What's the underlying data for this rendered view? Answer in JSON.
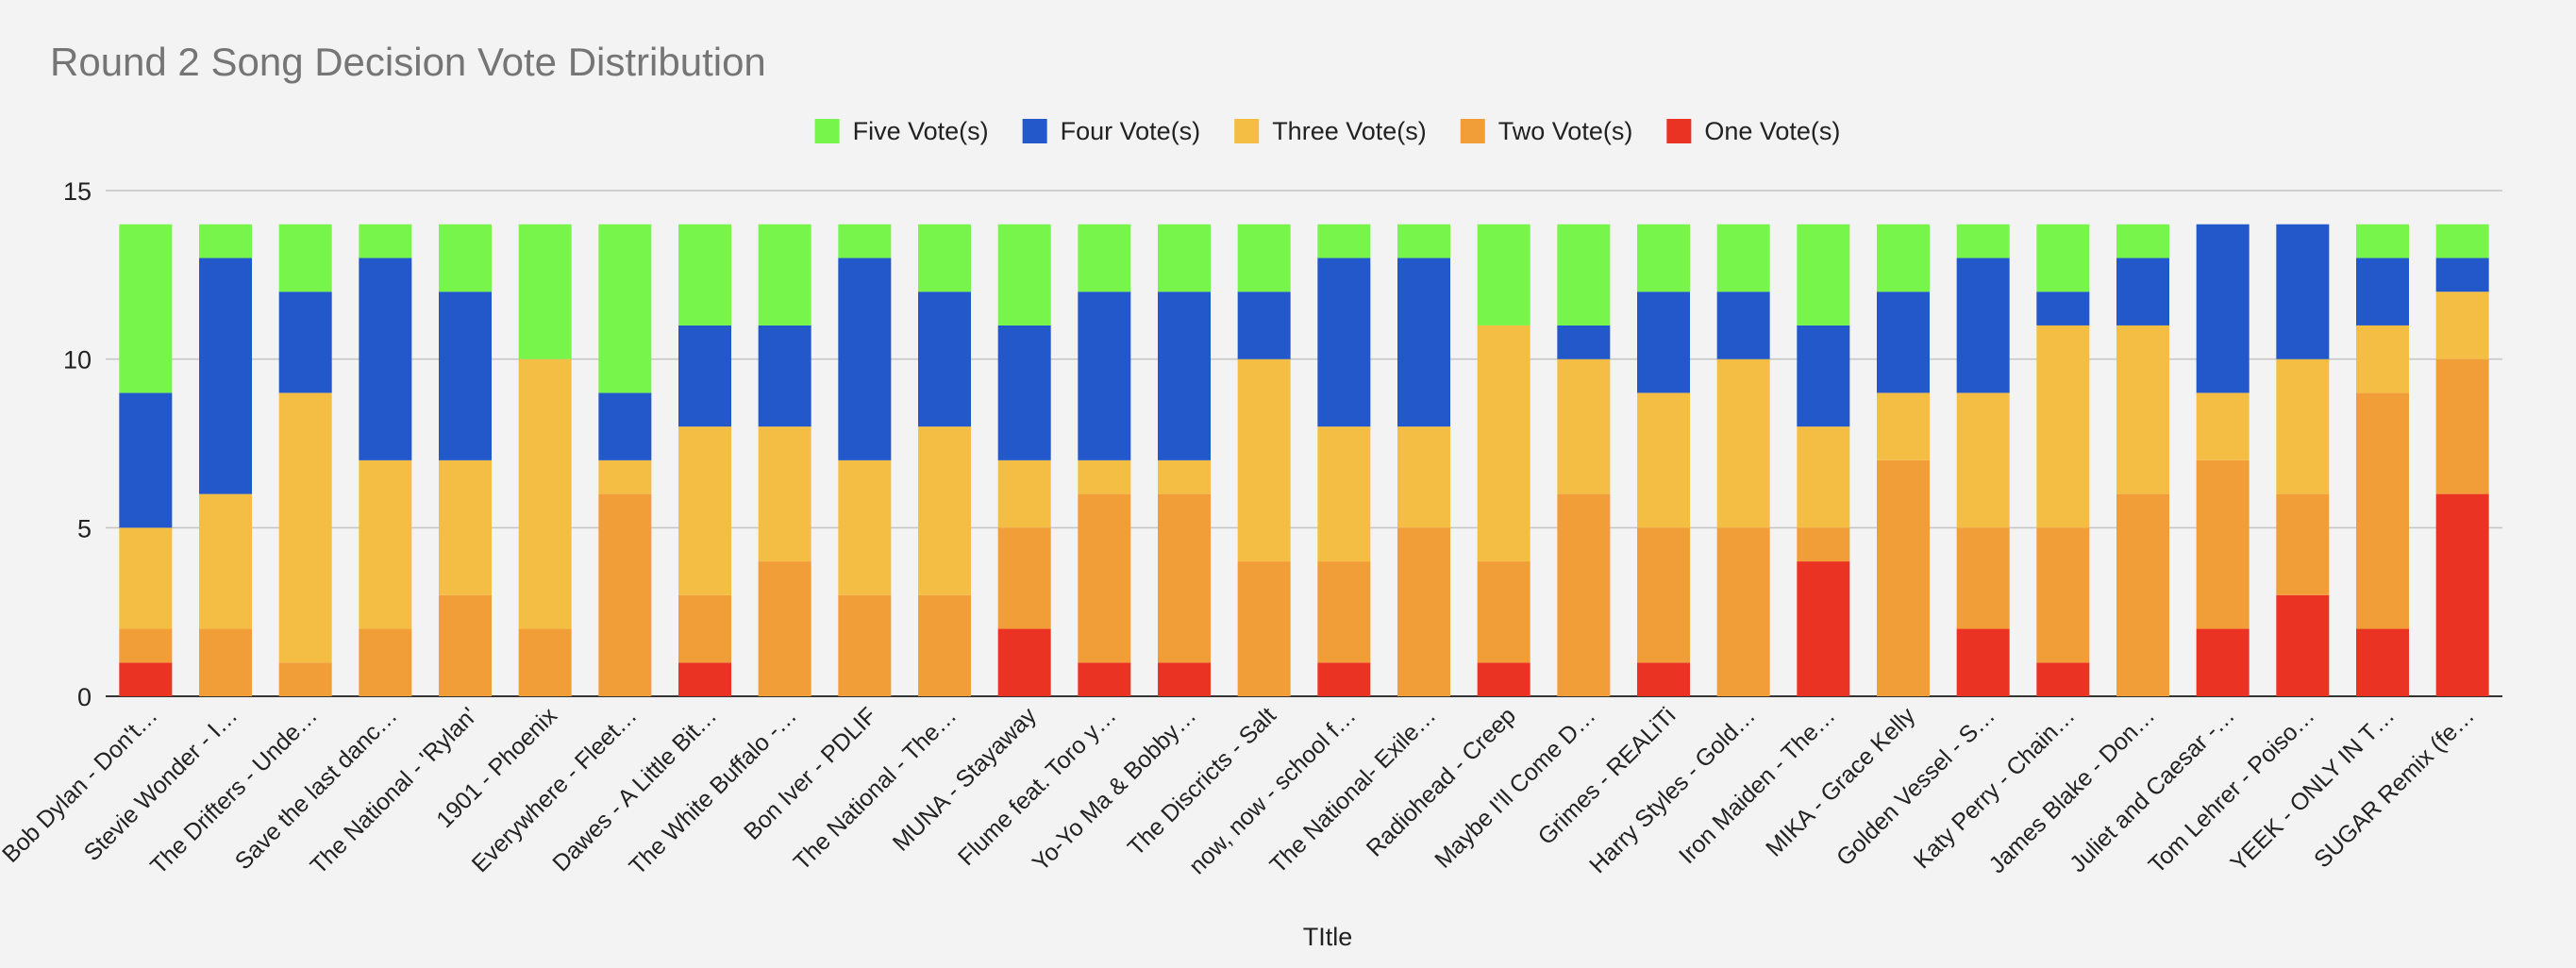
{
  "chart_data": {
    "type": "bar",
    "stacked": true,
    "title": "Round 2 Song Decision Vote Distribution",
    "xlabel": "TItle",
    "ylabel": "",
    "ylim": [
      0,
      15
    ],
    "yticks": [
      0,
      5,
      10,
      15
    ],
    "grid": true,
    "legend_position": "top",
    "categories": [
      "Bob Dylan - Don't…",
      "Stevie Wonder - I…",
      "The Drifters - Unde…",
      "Save the last danc…",
      "The National - 'Rylan'",
      "1901 - Phoenix",
      "Everywhere - Fleet…",
      "Dawes - A Little Bit…",
      "The White Buffalo -…",
      "Bon Iver - PDLIF",
      "The National - The…",
      "MUNA - Stayaway",
      "Flume feat. Toro y…",
      "Yo-Yo Ma & Bobby…",
      "The Discricts - Salt",
      "now, now - school f…",
      "The National- Exile…",
      "Radiohead - Creep",
      "Maybe I'll Come D…",
      "Grimes - REALiTi",
      "Harry Styles - Gold…",
      "Iron Maiden - The…",
      "MIKA - Grace Kelly",
      "Golden Vessel - S…",
      "Katy Perry - Chain…",
      "James Blake - Don…",
      "Juliet and Caesar -…",
      "Tom Lehrer - Poiso…",
      "YEEK - ONLY IN T…",
      "SUGAR Remix (fe…"
    ],
    "series": [
      {
        "name": "One Vote(s)",
        "color": "#ea3323",
        "values": [
          1,
          0,
          0,
          0,
          0,
          0,
          0,
          1,
          0,
          0,
          0,
          2,
          1,
          1,
          0,
          1,
          0,
          1,
          0,
          1,
          0,
          4,
          0,
          2,
          1,
          0,
          2,
          3,
          2,
          6
        ]
      },
      {
        "name": "Two Vote(s)",
        "color": "#f29e38",
        "values": [
          1,
          2,
          1,
          2,
          3,
          2,
          6,
          2,
          4,
          3,
          3,
          3,
          5,
          5,
          4,
          3,
          5,
          3,
          6,
          4,
          5,
          1,
          7,
          3,
          4,
          6,
          5,
          3,
          7,
          4
        ]
      },
      {
        "name": "Three Vote(s)",
        "color": "#f4be45",
        "values": [
          3,
          4,
          8,
          5,
          4,
          8,
          1,
          5,
          4,
          4,
          5,
          2,
          1,
          1,
          6,
          4,
          3,
          7,
          4,
          4,
          5,
          3,
          2,
          4,
          6,
          5,
          2,
          4,
          2,
          2
        ]
      },
      {
        "name": "Four Vote(s)",
        "color": "#2258c9",
        "values": [
          4,
          7,
          3,
          6,
          5,
          0,
          2,
          3,
          3,
          6,
          4,
          4,
          5,
          5,
          2,
          5,
          5,
          0,
          1,
          3,
          2,
          3,
          3,
          4,
          1,
          2,
          5,
          4,
          2,
          1
        ]
      },
      {
        "name": "Five Vote(s)",
        "color": "#77f54b",
        "values": [
          5,
          1,
          2,
          1,
          2,
          4,
          5,
          3,
          3,
          1,
          2,
          3,
          2,
          2,
          2,
          1,
          1,
          3,
          3,
          2,
          2,
          3,
          2,
          1,
          2,
          1,
          0,
          0,
          1,
          1
        ]
      }
    ],
    "legend_order": [
      "Five Vote(s)",
      "Four Vote(s)",
      "Three Vote(s)",
      "Two Vote(s)",
      "One Vote(s)"
    ]
  }
}
